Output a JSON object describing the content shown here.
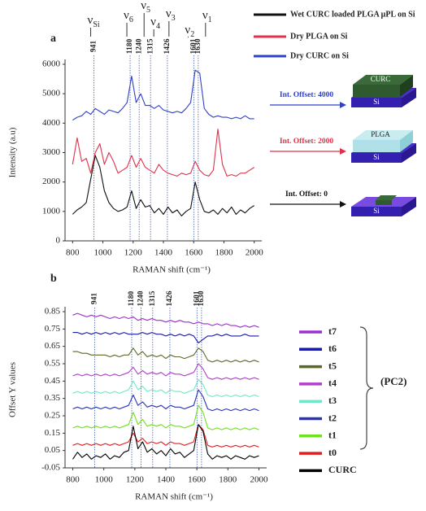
{
  "chart_data": [
    {
      "type": "line",
      "panel": "a",
      "y_label": "Intensity (a.u)",
      "x_label": "RAMAN shift (cm⁻¹)",
      "xlim": [
        750,
        2050
      ],
      "ylim": [
        0,
        6000
      ],
      "xticks": [
        800,
        1000,
        1200,
        1400,
        1600,
        1800,
        2000
      ],
      "yticks": [
        0,
        1000,
        2000,
        3000,
        4000,
        5000,
        6000
      ],
      "peak_positions": [
        941,
        1180,
        1240,
        1315,
        1426,
        1601,
        1630
      ],
      "modes": [
        {
          "symbol": "ν",
          "sub": "Si"
        },
        {
          "symbol": "ν",
          "sub": "6"
        },
        {
          "symbol": "ν",
          "sub": "5"
        },
        {
          "symbol": "ν",
          "sub": "4"
        },
        {
          "symbol": "ν",
          "sub": "3"
        },
        {
          "symbol": "ν",
          "sub": "2"
        },
        {
          "symbol": "ν",
          "sub": "1"
        }
      ],
      "x": [
        800,
        830,
        860,
        890,
        920,
        950,
        980,
        1010,
        1040,
        1070,
        1100,
        1130,
        1160,
        1190,
        1220,
        1250,
        1280,
        1310,
        1340,
        1370,
        1400,
        1430,
        1460,
        1490,
        1520,
        1550,
        1580,
        1610,
        1640,
        1670,
        1700,
        1730,
        1760,
        1790,
        1820,
        1850,
        1880,
        1910,
        1940,
        1970,
        2000
      ],
      "series": [
        {
          "name": "Wet CURC loaded PLGA μPL on Si",
          "color": "#111111",
          "values": [
            900,
            1050,
            1150,
            1300,
            2100,
            2900,
            2500,
            1700,
            1300,
            1100,
            1000,
            1050,
            1150,
            1700,
            1100,
            1400,
            1150,
            1200,
            950,
            1100,
            900,
            1150,
            950,
            1050,
            850,
            1000,
            1100,
            2000,
            1400,
            1000,
            950,
            1050,
            900,
            1100,
            950,
            1150,
            900,
            1050,
            950,
            1100,
            1200
          ]
        },
        {
          "name": "Dry PLGA on Si",
          "color": "#e0304a",
          "values": [
            2600,
            3500,
            2700,
            2800,
            2300,
            3000,
            3300,
            2600,
            3000,
            2700,
            2300,
            2400,
            2500,
            2900,
            2500,
            2800,
            2500,
            2400,
            2300,
            2600,
            2400,
            2300,
            2250,
            2200,
            2300,
            2250,
            2300,
            2700,
            2400,
            2250,
            2200,
            2400,
            3800,
            2600,
            2200,
            2250,
            2200,
            2300,
            2300,
            2400,
            2500
          ]
        },
        {
          "name": "Dry CURC on Si",
          "color": "#3040c8",
          "values": [
            4100,
            4200,
            4250,
            4400,
            4300,
            4500,
            4400,
            4300,
            4450,
            4400,
            4350,
            4500,
            4700,
            5600,
            4700,
            5000,
            4600,
            4600,
            4500,
            4600,
            4450,
            4400,
            4350,
            4400,
            4350,
            4500,
            4700,
            5800,
            5700,
            4500,
            4300,
            4200,
            4250,
            4200,
            4200,
            4150,
            4200,
            4150,
            4250,
            4150,
            4150
          ]
        }
      ],
      "offsets": [
        {
          "text": "Int. Offset: 4000",
          "color": "#3040c8"
        },
        {
          "text": "Int. Offset: 2000",
          "color": "#e0304a"
        },
        {
          "text": "Int. Offset: 0",
          "color": "#111111"
        }
      ],
      "samples": [
        {
          "layer": "CURC",
          "substrate": "Si"
        },
        {
          "layer": "PLGA",
          "substrate": "Si"
        },
        {
          "substrate": "Si"
        }
      ]
    },
    {
      "type": "line",
      "panel": "b",
      "y_label": "Offset Y values",
      "x_label": "RAMAN shift (cm⁻¹)",
      "xlim": [
        750,
        2050
      ],
      "ylim": [
        -0.05,
        0.85
      ],
      "xticks": [
        800,
        1000,
        1200,
        1400,
        1600,
        1800,
        2000
      ],
      "yticks": [
        -0.05,
        0.05,
        0.15,
        0.25,
        0.35,
        0.45,
        0.55,
        0.65,
        0.75,
        0.85
      ],
      "peak_positions": [
        941,
        1180,
        1240,
        1315,
        1426,
        1601,
        1630
      ],
      "x": [
        800,
        830,
        860,
        890,
        920,
        950,
        980,
        1010,
        1040,
        1070,
        1100,
        1130,
        1160,
        1190,
        1220,
        1250,
        1280,
        1310,
        1340,
        1370,
        1400,
        1430,
        1460,
        1490,
        1520,
        1550,
        1580,
        1610,
        1640,
        1670,
        1700,
        1730,
        1760,
        1790,
        1820,
        1850,
        1880,
        1910,
        1940,
        1970,
        2000
      ],
      "series": [
        {
          "name": "t7",
          "color": "#9b30d0",
          "values": [
            0.83,
            0.84,
            0.83,
            0.82,
            0.83,
            0.82,
            0.83,
            0.82,
            0.81,
            0.82,
            0.81,
            0.82,
            0.81,
            0.82,
            0.8,
            0.81,
            0.8,
            0.81,
            0.8,
            0.8,
            0.79,
            0.8,
            0.79,
            0.8,
            0.79,
            0.79,
            0.78,
            0.79,
            0.78,
            0.78,
            0.77,
            0.78,
            0.77,
            0.78,
            0.77,
            0.77,
            0.76,
            0.77,
            0.76,
            0.77,
            0.76
          ]
        },
        {
          "name": "t6",
          "color": "#1a1aa8",
          "values": [
            0.73,
            0.73,
            0.72,
            0.73,
            0.72,
            0.73,
            0.72,
            0.73,
            0.72,
            0.73,
            0.72,
            0.73,
            0.72,
            0.72,
            0.72,
            0.73,
            0.72,
            0.73,
            0.72,
            0.72,
            0.71,
            0.72,
            0.71,
            0.72,
            0.71,
            0.72,
            0.71,
            0.67,
            0.69,
            0.71,
            0.71,
            0.72,
            0.71,
            0.72,
            0.71,
            0.71,
            0.71,
            0.72,
            0.71,
            0.71,
            0.71
          ]
        },
        {
          "name": "t5",
          "color": "#5a6a2a",
          "values": [
            0.62,
            0.62,
            0.61,
            0.61,
            0.6,
            0.6,
            0.6,
            0.6,
            0.59,
            0.6,
            0.59,
            0.6,
            0.6,
            0.64,
            0.6,
            0.62,
            0.59,
            0.6,
            0.59,
            0.6,
            0.58,
            0.6,
            0.59,
            0.59,
            0.58,
            0.59,
            0.6,
            0.64,
            0.62,
            0.57,
            0.56,
            0.57,
            0.56,
            0.57,
            0.56,
            0.57,
            0.56,
            0.57,
            0.56,
            0.57,
            0.56
          ]
        },
        {
          "name": "t4",
          "color": "#b040c8",
          "values": [
            0.48,
            0.49,
            0.48,
            0.49,
            0.48,
            0.49,
            0.48,
            0.49,
            0.48,
            0.49,
            0.48,
            0.49,
            0.5,
            0.53,
            0.49,
            0.51,
            0.49,
            0.5,
            0.49,
            0.5,
            0.48,
            0.5,
            0.49,
            0.49,
            0.48,
            0.49,
            0.5,
            0.55,
            0.52,
            0.47,
            0.46,
            0.47,
            0.46,
            0.47,
            0.46,
            0.47,
            0.46,
            0.47,
            0.46,
            0.47,
            0.46
          ]
        },
        {
          "name": "t3",
          "color": "#70e8c8",
          "values": [
            0.38,
            0.39,
            0.38,
            0.39,
            0.38,
            0.39,
            0.38,
            0.39,
            0.38,
            0.39,
            0.38,
            0.39,
            0.4,
            0.45,
            0.4,
            0.42,
            0.39,
            0.4,
            0.39,
            0.4,
            0.38,
            0.4,
            0.39,
            0.39,
            0.38,
            0.39,
            0.4,
            0.46,
            0.43,
            0.37,
            0.36,
            0.37,
            0.36,
            0.37,
            0.36,
            0.37,
            0.36,
            0.37,
            0.36,
            0.37,
            0.36
          ]
        },
        {
          "name": "t2",
          "color": "#2a34b8",
          "values": [
            0.29,
            0.3,
            0.29,
            0.3,
            0.29,
            0.3,
            0.29,
            0.3,
            0.29,
            0.3,
            0.29,
            0.3,
            0.31,
            0.37,
            0.31,
            0.33,
            0.3,
            0.31,
            0.3,
            0.31,
            0.29,
            0.31,
            0.3,
            0.3,
            0.29,
            0.3,
            0.31,
            0.4,
            0.36,
            0.29,
            0.28,
            0.29,
            0.28,
            0.29,
            0.28,
            0.29,
            0.28,
            0.29,
            0.28,
            0.29,
            0.28
          ]
        },
        {
          "name": "t1",
          "color": "#70e020",
          "values": [
            0.18,
            0.19,
            0.18,
            0.19,
            0.18,
            0.19,
            0.18,
            0.19,
            0.18,
            0.19,
            0.18,
            0.19,
            0.2,
            0.27,
            0.2,
            0.23,
            0.19,
            0.2,
            0.19,
            0.2,
            0.18,
            0.2,
            0.19,
            0.19,
            0.18,
            0.19,
            0.2,
            0.31,
            0.27,
            0.18,
            0.17,
            0.18,
            0.17,
            0.18,
            0.17,
            0.18,
            0.17,
            0.18,
            0.17,
            0.18,
            0.17
          ]
        },
        {
          "name": "t0",
          "color": "#e02020",
          "values": [
            0.08,
            0.09,
            0.08,
            0.09,
            0.08,
            0.09,
            0.08,
            0.09,
            0.08,
            0.09,
            0.08,
            0.09,
            0.1,
            0.15,
            0.1,
            0.12,
            0.09,
            0.1,
            0.09,
            0.1,
            0.08,
            0.1,
            0.09,
            0.09,
            0.08,
            0.09,
            0.1,
            0.2,
            0.17,
            0.08,
            0.07,
            0.08,
            0.07,
            0.08,
            0.07,
            0.08,
            0.07,
            0.08,
            0.07,
            0.08,
            0.07
          ]
        },
        {
          "name": "CURC",
          "color": "#000000",
          "values": [
            0.0,
            0.04,
            0.01,
            0.03,
            0.0,
            0.02,
            0.01,
            0.03,
            0.0,
            0.02,
            0.01,
            0.04,
            0.05,
            0.19,
            0.06,
            0.1,
            0.04,
            0.06,
            0.03,
            0.05,
            0.02,
            0.06,
            0.03,
            0.04,
            0.01,
            0.03,
            0.05,
            0.2,
            0.16,
            0.03,
            0.0,
            0.02,
            0.01,
            0.02,
            0.0,
            0.02,
            0.01,
            0.0,
            0.02,
            0.01,
            0.02
          ]
        }
      ],
      "group_label": "(PC2)"
    }
  ]
}
